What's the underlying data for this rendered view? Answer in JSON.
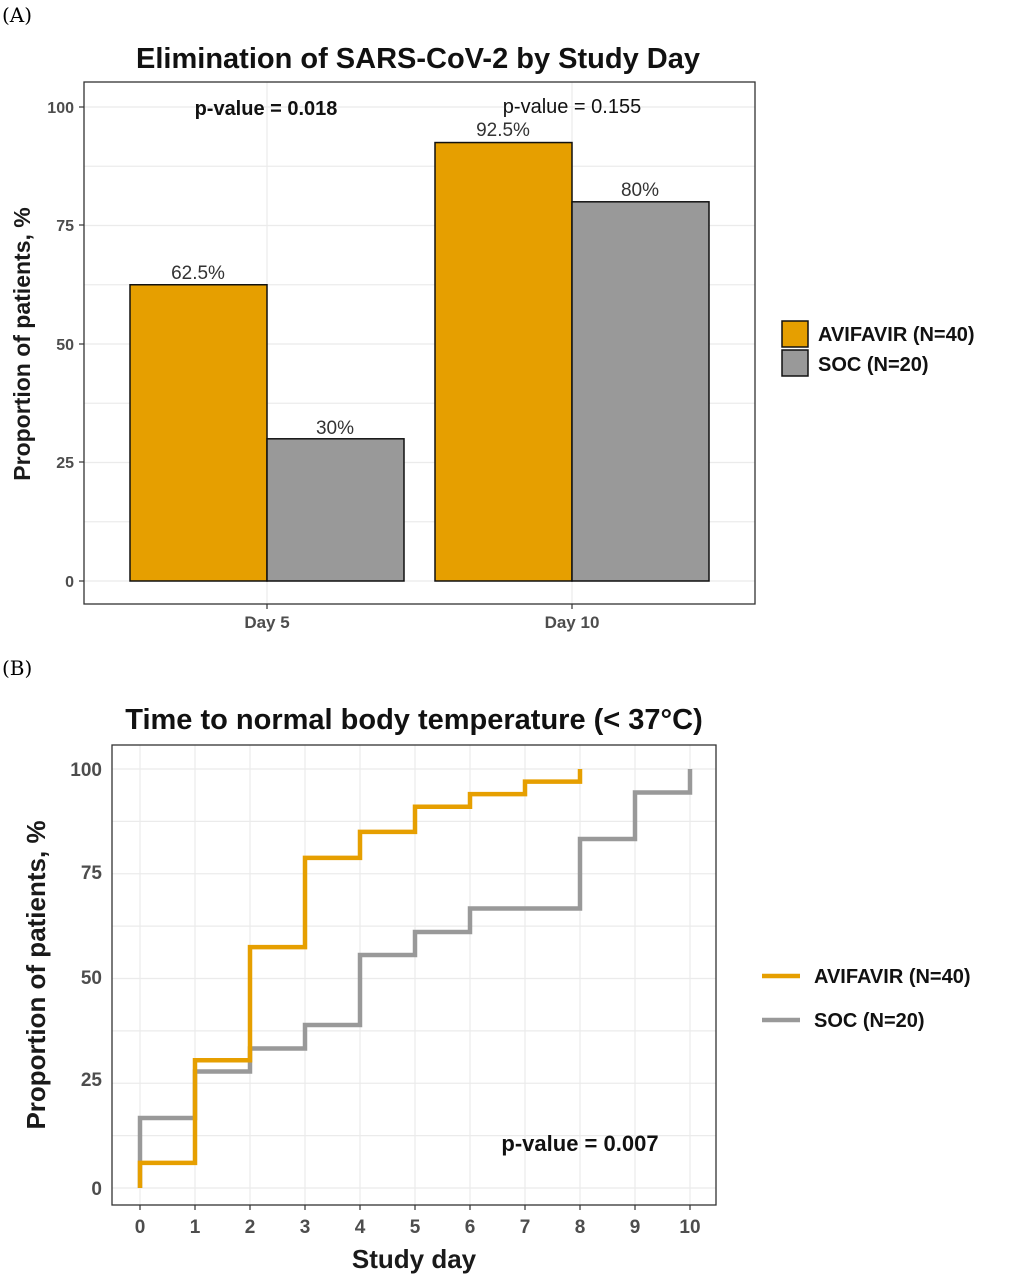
{
  "colors": {
    "avifavir": "#E69F00",
    "soc": "#999999"
  },
  "panel_a": {
    "label": "(A)",
    "chart_data": {
      "type": "bar",
      "title": "Elimination of SARS-CoV-2 by Study Day",
      "xlabel": "",
      "ylabel": "Proportion of patients, %",
      "categories": [
        "Day 5",
        "Day 10"
      ],
      "series": [
        {
          "name": "AVIFAVIR (N=40)",
          "values": [
            62.5,
            92.5
          ],
          "labels": [
            "62.5%",
            "92.5%"
          ]
        },
        {
          "name": "SOC (N=20)",
          "values": [
            30,
            80
          ],
          "labels": [
            "30%",
            "80%"
          ]
        }
      ],
      "ylim": [
        0,
        100
      ],
      "yticks": [
        0,
        25,
        50,
        75,
        100
      ],
      "annotations": [
        "p-value = 0.018",
        "p-value = 0.155"
      ],
      "grid": true,
      "legend_position": "right"
    }
  },
  "panel_b": {
    "label": "(B)",
    "chart_data": {
      "type": "line",
      "title": "Time to normal body temperature (< 37°C)",
      "xlabel": "Study day",
      "ylabel": "Proportion of patients, %",
      "xlim": [
        0,
        10
      ],
      "ylim": [
        0,
        100
      ],
      "xticks": [
        0,
        1,
        2,
        3,
        4,
        5,
        6,
        7,
        8,
        9,
        10
      ],
      "yticks": [
        0,
        25,
        50,
        75,
        100
      ],
      "series": [
        {
          "name": "AVIFAVIR (N=40)",
          "step": true,
          "x": [
            0,
            1,
            2,
            3,
            4,
            5,
            6,
            7,
            8
          ],
          "y": [
            6,
            30.5,
            57.5,
            78.8,
            85,
            91,
            94,
            97,
            100
          ]
        },
        {
          "name": "SOC (N=20)",
          "step": true,
          "x": [
            0,
            1,
            2,
            3,
            4,
            5,
            6,
            8,
            9,
            10
          ],
          "y": [
            16.7,
            27.8,
            33.3,
            38.9,
            55.6,
            61.1,
            66.7,
            83.3,
            94.4,
            100
          ]
        }
      ],
      "annotations": [
        "p-value = 0.007"
      ],
      "grid": true,
      "legend_position": "right"
    }
  }
}
